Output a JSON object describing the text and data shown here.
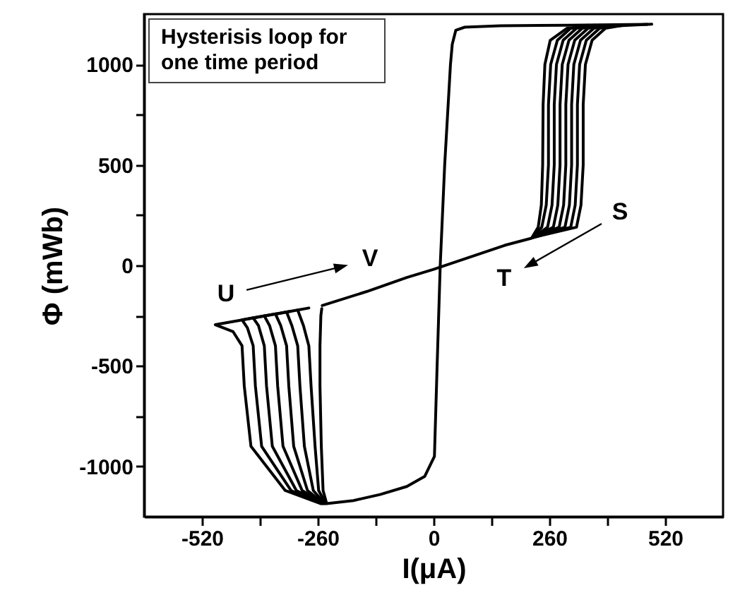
{
  "chart_data": {
    "type": "line",
    "xlabel": "I(μA)",
    "ylabel": "Φ (mWb)",
    "xlim": [
      -650,
      650
    ],
    "ylim": [
      -1250,
      1250
    ],
    "xticks": [
      -520,
      {
        "value": -390,
        "label": null
      },
      -260,
      {
        "value": -130,
        "label": null
      },
      0,
      {
        "value": 130,
        "label": null
      },
      260,
      {
        "value": 390,
        "label": null
      },
      520
    ],
    "yticks": [
      -1000,
      {
        "value": -750,
        "label": null
      },
      -500,
      {
        "value": -250,
        "label": null
      },
      0,
      {
        "value": 250,
        "label": null
      },
      500,
      {
        "value": 750,
        "label": null
      },
      1000
    ],
    "grid": false,
    "line_style": "solid",
    "annotations": [
      "Hysterisis loop for one time period",
      "U",
      "V",
      "S",
      "T"
    ],
    "series": [
      {
        "color": "#000000",
        "x": [
          -250,
          -150,
          -60,
          0,
          80,
          160,
          220,
          235,
          242,
          245,
          246,
          250,
          262,
          300,
          490
        ],
        "values": [
          -200,
          -130,
          -60,
          -20,
          40,
          100,
          135,
          190,
          300,
          500,
          800,
          1000,
          1120,
          1180,
          1200
        ]
      },
      {
        "color": "#000000",
        "x": [
          480,
          300,
          150,
          70,
          50,
          42,
          38,
          25,
          15,
          8,
          2,
          -20,
          -60,
          -120,
          -180,
          -240,
          -248,
          -252,
          -255,
          -255,
          -253,
          -251
        ],
        "values": [
          1199,
          1195,
          1192,
          1185,
          1170,
          1100,
          1000,
          500,
          0,
          -500,
          -950,
          -1050,
          -1100,
          -1140,
          -1170,
          -1185,
          -1120,
          -900,
          -600,
          -400,
          -250,
          -215
        ]
      },
      {
        "color": "#000000",
        "x": [
          222,
          243,
          253,
          258,
          258,
          263,
          278,
          308,
          348
        ],
        "values": [
          137,
          190,
          300,
          500,
          800,
          1000,
          1120,
          1180,
          1195
        ]
      },
      {
        "color": "#000000",
        "x": [
          224,
          256,
          266,
          271,
          271,
          276,
          291,
          321,
          361
        ],
        "values": [
          138,
          190,
          300,
          500,
          800,
          1000,
          1120,
          1180,
          1195
        ]
      },
      {
        "color": "#000000",
        "x": [
          226,
          269,
          279,
          284,
          284,
          289,
          304,
          334,
          374
        ],
        "values": [
          140,
          190,
          300,
          500,
          800,
          1000,
          1120,
          1180,
          1195
        ]
      },
      {
        "color": "#000000",
        "x": [
          228,
          282,
          292,
          297,
          297,
          302,
          317,
          347,
          387
        ],
        "values": [
          141,
          190,
          300,
          500,
          800,
          1000,
          1120,
          1180,
          1195
        ]
      },
      {
        "color": "#000000",
        "x": [
          230,
          295,
          305,
          310,
          310,
          315,
          330,
          360,
          400
        ],
        "values": [
          142,
          190,
          300,
          500,
          800,
          1000,
          1120,
          1180,
          1195
        ]
      },
      {
        "color": "#000000",
        "x": [
          232,
          308,
          318,
          323,
          323,
          328,
          343,
          373,
          413
        ],
        "values": [
          144,
          190,
          300,
          500,
          800,
          1000,
          1120,
          1180,
          1195
        ]
      },
      {
        "color": "#000000",
        "x": [
          234,
          321,
          331,
          336,
          336,
          341,
          356,
          386,
          426
        ],
        "values": [
          145,
          190,
          300,
          500,
          800,
          1000,
          1120,
          1180,
          1195
        ]
      },
      {
        "color": "#000000",
        "x": [
          -242,
          -258,
          -266,
          -275,
          -280,
          -292,
          -305,
          -280
        ],
        "values": [
          -1185,
          -1120,
          -900,
          -600,
          -400,
          -300,
          -222,
          -212
        ]
      },
      {
        "color": "#000000",
        "x": [
          -244,
          -270,
          -290,
          -300,
          -305,
          -318,
          -330,
          -305
        ],
        "values": [
          -1185,
          -1120,
          -900,
          -600,
          -400,
          -300,
          -232,
          -222
        ]
      },
      {
        "color": "#000000",
        "x": [
          -246,
          -283,
          -314,
          -325,
          -330,
          -343,
          -355,
          -330
        ],
        "values": [
          -1185,
          -1120,
          -900,
          -600,
          -400,
          -300,
          -242,
          -232
        ]
      },
      {
        "color": "#000000",
        "x": [
          -248,
          -295,
          -338,
          -350,
          -355,
          -368,
          -380,
          -355
        ],
        "values": [
          -1185,
          -1120,
          -900,
          -600,
          -400,
          -300,
          -251,
          -241
        ]
      },
      {
        "color": "#000000",
        "x": [
          -250,
          -308,
          -362,
          -375,
          -380,
          -393,
          -405,
          -380
        ],
        "values": [
          -1185,
          -1120,
          -900,
          -600,
          -400,
          -300,
          -261,
          -251
        ]
      },
      {
        "color": "#000000",
        "x": [
          -252,
          -320,
          -386,
          -400,
          -405,
          -418,
          -430,
          -405
        ],
        "values": [
          -1185,
          -1120,
          -900,
          -600,
          -400,
          -310,
          -271,
          -261
        ]
      },
      {
        "color": "#000000",
        "x": [
          -254,
          -333,
          -410,
          -425,
          -430,
          -450,
          -490,
          -400,
          -320
        ],
        "values": [
          -1185,
          -1120,
          -900,
          -600,
          -400,
          -330,
          -295,
          -260,
          -228
        ]
      }
    ]
  }
}
